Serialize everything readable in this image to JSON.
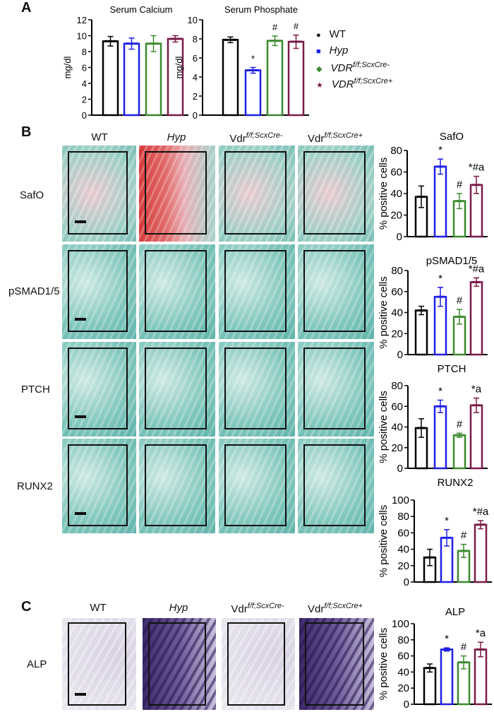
{
  "panels": {
    "a": "A",
    "b": "B",
    "c": "C"
  },
  "groups": [
    "WT",
    "Hyp",
    "VDR",
    "VDR"
  ],
  "legend": [
    {
      "base": "WT",
      "sup": "",
      "italic": false,
      "color": "#000000",
      "marker": "circle"
    },
    {
      "base": "Hyp",
      "sup": "",
      "italic": true,
      "color": "#1f1fe6",
      "marker": "square"
    },
    {
      "base": "VDR",
      "sup": "f/f;ScxCre-",
      "italic": true,
      "color": "#3c8a2e",
      "marker": "diamond"
    },
    {
      "base": "VDR",
      "sup": "f/f;ScxCre+",
      "italic": true,
      "color": "#7a1a48",
      "marker": "star"
    }
  ],
  "column_headers": [
    {
      "base": "WT",
      "sup": "",
      "italic": false
    },
    {
      "base": "Hyp",
      "sup": "",
      "italic": true
    },
    {
      "base": "Vdr",
      "sup": "f/f;ScxCre-",
      "italic": false
    },
    {
      "base": "Vdr",
      "sup": "f/f;ScxCre+",
      "italic": false
    }
  ],
  "row_labels": [
    "SafO",
    "pSMAD1/5",
    "PTCH",
    "RUNX2"
  ],
  "panel_c_row_label": "ALP",
  "colors": {
    "WT": "#000000",
    "Hyp": "#1f1fe6",
    "VDR_cre_neg": "#3c8a2e",
    "VDR_cre_pos": "#7a1a48"
  },
  "chart_data": [
    {
      "type": "bar",
      "title": "Serum Calcium",
      "ylabel": "mg/dl",
      "ylim": [
        0,
        12
      ],
      "yticks": [
        0,
        2,
        4,
        6,
        8,
        10,
        12
      ],
      "categories": [
        "WT",
        "Hyp",
        "VDR f/f;ScxCre-",
        "VDR f/f;ScxCre+"
      ],
      "values": [
        9.3,
        9.0,
        9.0,
        9.6
      ],
      "errors": [
        0.6,
        0.7,
        1.0,
        0.4
      ],
      "annotations": [
        "",
        "",
        "",
        ""
      ]
    },
    {
      "type": "bar",
      "title": "Serum Phosphate",
      "ylabel": "mg/dl",
      "ylim": [
        0,
        10
      ],
      "yticks": [
        0,
        2,
        4,
        6,
        8,
        10
      ],
      "categories": [
        "WT",
        "Hyp",
        "VDR f/f;ScxCre-",
        "VDR f/f;ScxCre+"
      ],
      "values": [
        7.9,
        4.7,
        7.8,
        7.7
      ],
      "errors": [
        0.3,
        0.3,
        0.5,
        0.7
      ],
      "annotations": [
        "",
        "*",
        "#",
        "#"
      ]
    },
    {
      "type": "bar",
      "title": "SafO",
      "ylabel": "% positive cells",
      "ylim": [
        0,
        80
      ],
      "yticks": [
        0,
        20,
        40,
        60,
        80
      ],
      "categories": [
        "WT",
        "Hyp",
        "Vdr f/f;ScxCre-",
        "Vdr f/f;ScxCre+"
      ],
      "values": [
        37,
        65,
        33,
        48
      ],
      "errors": [
        10,
        7,
        7,
        8
      ],
      "annotations": [
        "",
        "*",
        "#",
        "*#a"
      ]
    },
    {
      "type": "bar",
      "title": "pSMAD1/5",
      "ylabel": "% positive cells",
      "ylim": [
        0,
        80
      ],
      "yticks": [
        0,
        20,
        40,
        60,
        80
      ],
      "categories": [
        "WT",
        "Hyp",
        "Vdr f/f;ScxCre-",
        "Vdr f/f;ScxCre+"
      ],
      "values": [
        42,
        55,
        36,
        69
      ],
      "errors": [
        4,
        9,
        7,
        4
      ],
      "annotations": [
        "",
        "*",
        "#",
        "*#a"
      ]
    },
    {
      "type": "bar",
      "title": "PTCH",
      "ylabel": "% positive cells",
      "ylim": [
        0,
        80
      ],
      "yticks": [
        0,
        20,
        40,
        60,
        80
      ],
      "categories": [
        "WT",
        "Hyp",
        "Vdr f/f;ScxCre-",
        "Vdr f/f;ScxCre+"
      ],
      "values": [
        39,
        60,
        32,
        61
      ],
      "errors": [
        9,
        6,
        2,
        7
      ],
      "annotations": [
        "",
        "*",
        "#",
        "*a"
      ]
    },
    {
      "type": "bar",
      "title": "RUNX2",
      "ylabel": "% positive cells",
      "ylim": [
        0,
        100
      ],
      "yticks": [
        0,
        20,
        40,
        60,
        80,
        100
      ],
      "categories": [
        "WT",
        "Hyp",
        "Vdr f/f;ScxCre-",
        "Vdr f/f;ScxCre+"
      ],
      "values": [
        30,
        54,
        38,
        70
      ],
      "errors": [
        10,
        10,
        8,
        5
      ],
      "annotations": [
        "",
        "*",
        "#",
        "*#a"
      ]
    },
    {
      "type": "bar",
      "title": "ALP",
      "ylabel": "% positive cells",
      "ylim": [
        0,
        100
      ],
      "yticks": [
        0,
        20,
        40,
        60,
        80,
        100
      ],
      "categories": [
        "WT",
        "Hyp",
        "Vdr f/f;ScxCre-",
        "Vdr f/f;ScxCre+"
      ],
      "values": [
        45,
        68,
        52,
        68
      ],
      "errors": [
        5,
        2,
        8,
        9
      ],
      "annotations": [
        "",
        "*",
        "#",
        "*a"
      ]
    }
  ]
}
